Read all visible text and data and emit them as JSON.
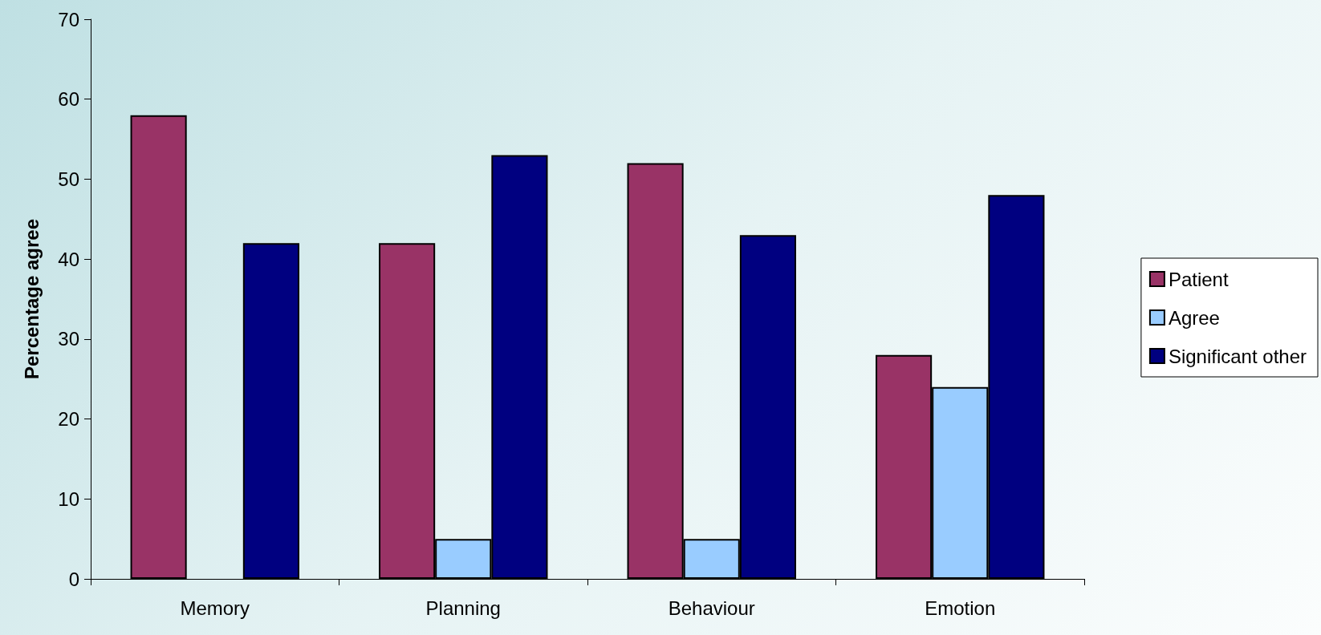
{
  "chart_data": {
    "type": "bar",
    "ylabel": "Percentage agree",
    "categories": [
      "Memory",
      "Planning",
      "Behaviour",
      "Emotion"
    ],
    "series": [
      {
        "name": "Patient",
        "color": "#993366",
        "values": [
          58,
          42,
          52,
          28
        ]
      },
      {
        "name": "Agree",
        "color": "#99ccff",
        "values": [
          null,
          5,
          5,
          24
        ]
      },
      {
        "name": "Significant other",
        "color": "#000080",
        "values": [
          42,
          53,
          43,
          48
        ]
      }
    ],
    "ylim": [
      0,
      70
    ],
    "yticks": [
      0,
      10,
      20,
      30,
      40,
      50,
      60,
      70
    ],
    "grid": false,
    "legend": "right"
  }
}
